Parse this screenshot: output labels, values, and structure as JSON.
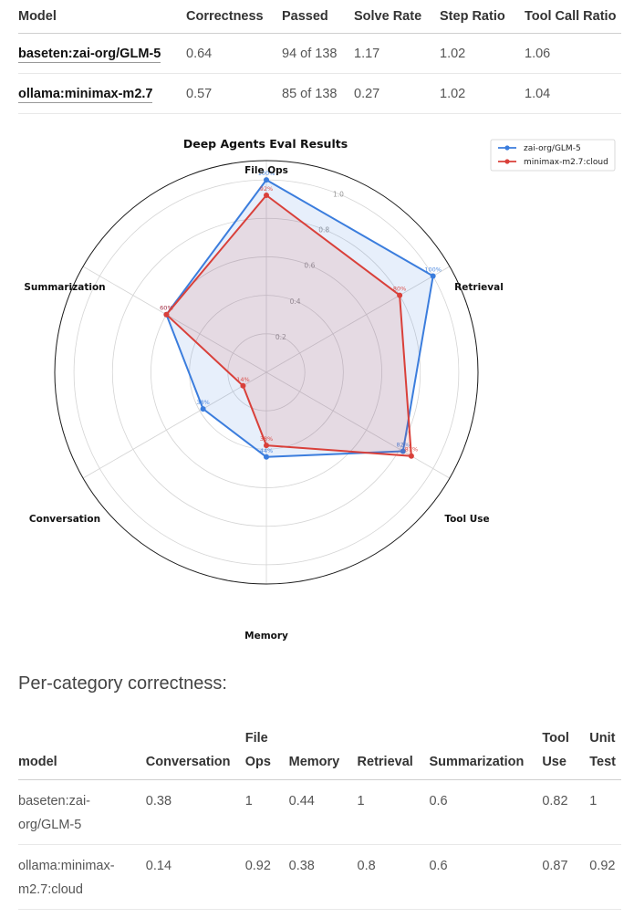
{
  "summary_table": {
    "headers": [
      "Model",
      "Correctness",
      "Passed",
      "Solve Rate",
      "Step Ratio",
      "Tool Call Ratio"
    ],
    "rows": [
      [
        "baseten:zai-org/GLM-5",
        "0.64",
        "94 of 138",
        "1.17",
        "1.02",
        "1.06"
      ],
      [
        "ollama:minimax-m2.7",
        "0.57",
        "85 of 138",
        "0.27",
        "1.02",
        "1.04"
      ]
    ]
  },
  "chart_data": {
    "type": "radar",
    "title": "Deep Agents Eval Results",
    "categories": [
      "File Ops",
      "Retrieval",
      "Tool Use",
      "Memory",
      "Conversation",
      "Summarization"
    ],
    "series": [
      {
        "name": "zai-org/GLM-5",
        "color": "#3b7ddd",
        "values": [
          1.0,
          1.0,
          0.82,
          0.44,
          0.38,
          0.6
        ],
        "labels": [
          "100%",
          "100%",
          "82%",
          "44%",
          "38%",
          "60%"
        ]
      },
      {
        "name": "minimax-m2.7:cloud",
        "color": "#d9403a",
        "values": [
          0.92,
          0.8,
          0.87,
          0.38,
          0.14,
          0.6
        ],
        "labels": [
          "92%",
          "80%",
          "87%",
          "38%",
          "14%",
          "60%"
        ]
      }
    ],
    "rlim": [
      0,
      1.1
    ],
    "radial_ticks": [
      "0.2",
      "0.4",
      "0.6",
      "0.8",
      "1.0"
    ],
    "grid": true,
    "legend": "top-right"
  },
  "section_heading": "Per-category correctness:",
  "category_table": {
    "headers": [
      "model",
      "Conversation",
      "File Ops",
      "Memory",
      "Retrieval",
      "Summarization",
      "Tool Use",
      "Unit Test"
    ],
    "rows": [
      [
        "baseten:zai-org/GLM-5",
        "0.38",
        "1",
        "0.44",
        "1",
        "0.6",
        "0.82",
        "1"
      ],
      [
        "ollama:minimax-m2.7:cloud",
        "0.14",
        "0.92",
        "0.38",
        "0.8",
        "0.6",
        "0.87",
        "0.92"
      ]
    ]
  }
}
